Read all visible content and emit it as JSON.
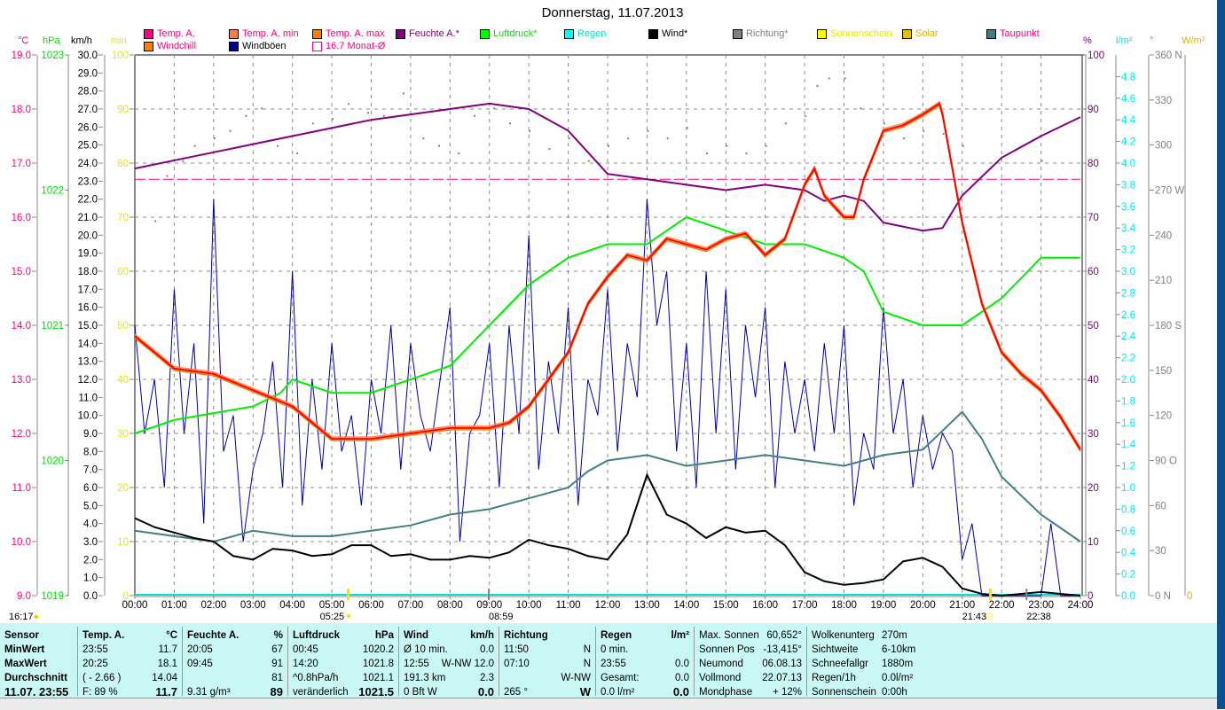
{
  "title": "Donnerstag, 11.07.2013",
  "legend": [
    {
      "label": "Temp. A.",
      "color": "#ff0080",
      "text": "#ff0080"
    },
    {
      "label": "Temp. A. min",
      "color": "#ff8040",
      "text": "#ff0080"
    },
    {
      "label": "Temp. A. max",
      "color": "#ff8000",
      "text": "#ff0080"
    },
    {
      "label": "Feuchte A.*",
      "color": "#800080",
      "text": "#800080"
    },
    {
      "label": "Luftdruck*",
      "color": "#00ff00",
      "text": "#00e000"
    },
    {
      "label": "Regen",
      "color": "#00ffff",
      "text": "#00e0e0"
    },
    {
      "label": "Wind*",
      "color": "#000000",
      "text": "#000000"
    },
    {
      "label": "Richtung*",
      "color": "#808080",
      "text": "#808080"
    },
    {
      "label": "Sonnenschein",
      "color": "#ffff00",
      "text": "#e8e800"
    },
    {
      "label": "Solar",
      "color": "#e0c000",
      "text": "#e0b000"
    },
    {
      "label": "Taupunkt",
      "color": "#408080",
      "text": "#ff0080"
    },
    {
      "label": "Windchill",
      "color": "#ff8000",
      "text": "#ff0080"
    },
    {
      "label": "Windböen",
      "color": "#000090",
      "text": "#000000"
    },
    {
      "label": "16.7 Monat-Ø",
      "color": "#ff0080",
      "text": "#ff0080"
    }
  ],
  "units": {
    "temp": "°C",
    "pressure": "hPa",
    "wind": "km/h",
    "minutes": "min",
    "humidity": "%",
    "rain": "l/m²",
    "direction": "°",
    "solar": "W/m²"
  },
  "chart_data": {
    "type": "line",
    "title": "Donnerstag, 11.07.2013",
    "x_tick_labels": [
      "00:00",
      "01:00",
      "02:00",
      "03:00",
      "04:00",
      "05:00",
      "06:00",
      "07:00",
      "08:00",
      "09:00",
      "10:00",
      "11:00",
      "12:00",
      "13:00",
      "14:00",
      "15:00",
      "16:00",
      "17:00",
      "18:00",
      "19:00",
      "20:00",
      "21:00",
      "22:00",
      "23:00",
      "24:00"
    ],
    "xlim_hours": [
      0,
      24
    ],
    "axes": {
      "temp": {
        "range": [
          9,
          19
        ],
        "ticks": [
          "9.0",
          "10.0",
          "11.0",
          "12.0",
          "13.0",
          "14.0",
          "15.0",
          "16.0",
          "17.0",
          "18.0",
          "19.0"
        ]
      },
      "pressure": {
        "range": [
          1019,
          1023
        ],
        "ticks": [
          "1019",
          "1020",
          "1021",
          "1022",
          "1023"
        ]
      },
      "wind": {
        "range": [
          0,
          30
        ],
        "ticks": [
          "0.0",
          "1.0",
          "2.0",
          "3.0",
          "4.0",
          "5.0",
          "6.0",
          "7.0",
          "8.0",
          "9.0",
          "10.0",
          "11.0",
          "12.0",
          "13.0",
          "14.0",
          "15.0",
          "16.0",
          "17.0",
          "18.0",
          "19.0",
          "20.0",
          "21.0",
          "22.0",
          "23.0",
          "24.0",
          "25.0",
          "26.0",
          "27.0",
          "28.0",
          "29.0",
          "30.0"
        ]
      },
      "minutes": {
        "range": [
          0,
          100
        ],
        "ticks": [
          "0",
          "10",
          "20",
          "30",
          "40",
          "50",
          "60",
          "70",
          "80",
          "90",
          "100"
        ]
      },
      "humidity": {
        "range": [
          0,
          100
        ],
        "ticks": [
          "0",
          "10",
          "20",
          "30",
          "40",
          "50",
          "60",
          "70",
          "80",
          "90",
          "100"
        ]
      },
      "rain": {
        "range": [
          0,
          5
        ],
        "ticks": [
          "0.0",
          "0.2",
          "0.4",
          "0.6",
          "0.8",
          "1.0",
          "1.2",
          "1.4",
          "1.6",
          "1.8",
          "2.0",
          "2.2",
          "2.4",
          "2.6",
          "2.8",
          "3.0",
          "3.2",
          "3.4",
          "3.6",
          "3.8",
          "4.0",
          "4.2",
          "4.4",
          "4.6",
          "4.8"
        ]
      },
      "direction": {
        "range": [
          0,
          360
        ],
        "ticks": [
          "0  N",
          "30",
          "60",
          "90  O",
          "120",
          "150",
          "180  S",
          "210",
          "240",
          "270  W",
          "300",
          "330",
          "360  N"
        ]
      },
      "solar": {
        "range": [
          0,
          1
        ],
        "ticks": [
          "0"
        ]
      }
    },
    "month_avg_temp": 16.7,
    "series": [
      {
        "name": "Temp. A.",
        "axis": "temp",
        "color": "#ff0000",
        "x": [
          0,
          1,
          2,
          3,
          4,
          4.5,
          5,
          6,
          7,
          8,
          9,
          9.5,
          10,
          10.5,
          11,
          11.5,
          12,
          12.5,
          13,
          13.5,
          14,
          14.5,
          15,
          15.5,
          16,
          16.5,
          17,
          17.25,
          17.5,
          18,
          18.25,
          18.5,
          19,
          19.5,
          20,
          20.42,
          20.5,
          21,
          21.5,
          22,
          22.5,
          23,
          23.5,
          24
        ],
        "values": [
          13.8,
          13.2,
          13.1,
          12.8,
          12.5,
          12.2,
          11.9,
          11.9,
          12.0,
          12.1,
          12.1,
          12.2,
          12.5,
          13.0,
          13.5,
          14.4,
          14.9,
          15.3,
          15.2,
          15.6,
          15.5,
          15.4,
          15.6,
          15.7,
          15.3,
          15.6,
          16.6,
          16.9,
          16.4,
          16.0,
          16.0,
          16.7,
          17.6,
          17.7,
          17.9,
          18.1,
          17.9,
          15.9,
          14.4,
          13.5,
          13.1,
          12.8,
          12.3,
          11.7
        ]
      },
      {
        "name": "Feuchte A.*",
        "axis": "humidity",
        "color": "#800080",
        "x": [
          0,
          1,
          2,
          3,
          4,
          5,
          6,
          7,
          8,
          9,
          10,
          11,
          12,
          13,
          14,
          15,
          16,
          17,
          17.5,
          18,
          18.5,
          19,
          20,
          20.5,
          21,
          22,
          23,
          24
        ],
        "values": [
          79,
          80.5,
          82,
          83.5,
          85,
          86.5,
          88,
          89,
          90,
          91,
          90,
          86,
          78,
          77,
          76,
          75,
          76,
          75,
          73,
          74,
          73,
          69,
          67.5,
          68,
          74,
          81,
          85,
          88.5
        ]
      },
      {
        "name": "Luftdruck*",
        "axis": "pressure",
        "color": "#00ee00",
        "x": [
          0,
          1,
          2,
          3,
          3.7,
          4,
          5,
          6,
          7,
          8,
          9,
          10,
          11,
          12,
          13,
          14,
          15,
          16,
          17,
          18,
          18.5,
          19,
          20,
          21,
          21.5,
          22,
          23,
          24
        ],
        "values": [
          1020.2,
          1020.3,
          1020.35,
          1020.4,
          1020.5,
          1020.6,
          1020.5,
          1020.5,
          1020.6,
          1020.7,
          1021.0,
          1021.3,
          1021.5,
          1021.6,
          1021.6,
          1021.8,
          1021.7,
          1021.6,
          1021.6,
          1021.5,
          1021.4,
          1021.1,
          1021.0,
          1021.0,
          1021.1,
          1021.2,
          1021.5,
          1021.5
        ]
      },
      {
        "name": "Wind*",
        "axis": "wind",
        "color": "#000000",
        "x": [
          0,
          0.5,
          1,
          1.5,
          2,
          2.5,
          3,
          3.5,
          4,
          4.5,
          5,
          5.5,
          6,
          6.5,
          7,
          7.5,
          8,
          8.5,
          9,
          9.5,
          10,
          10.5,
          11,
          11.5,
          12,
          12.5,
          13,
          13.5,
          14,
          14.5,
          15,
          15.5,
          16,
          16.5,
          17,
          17.5,
          18,
          18.5,
          19,
          19.5,
          20,
          20.5,
          21,
          21.5,
          22,
          23,
          23.5,
          24
        ],
        "values": [
          4.3,
          3.8,
          3.5,
          3.2,
          3.0,
          2.2,
          2.0,
          2.6,
          2.5,
          2.2,
          2.3,
          2.8,
          2.8,
          2.2,
          2.3,
          2.0,
          2.0,
          2.2,
          2.1,
          2.4,
          3.1,
          2.8,
          2.6,
          2.2,
          2.0,
          3.4,
          6.7,
          4.5,
          4.0,
          3.2,
          3.8,
          3.5,
          3.6,
          2.8,
          1.3,
          0.8,
          0.6,
          0.7,
          0.9,
          1.9,
          2.1,
          1.6,
          0.4,
          0.1,
          0.0,
          0.2,
          0.1,
          0.0
        ]
      },
      {
        "name": "Windböen",
        "axis": "wind",
        "color": "#0000a0",
        "x": [
          0,
          0.25,
          0.5,
          0.75,
          1,
          1.25,
          1.5,
          1.75,
          2,
          2.25,
          2.5,
          2.75,
          3,
          3.25,
          3.5,
          3.75,
          4,
          4.25,
          4.5,
          4.75,
          5,
          5.25,
          5.5,
          5.75,
          6,
          6.25,
          6.5,
          6.75,
          7,
          7.25,
          7.5,
          7.75,
          8,
          8.25,
          8.5,
          8.75,
          9,
          9.25,
          9.5,
          9.75,
          10,
          10.25,
          10.5,
          10.75,
          11,
          11.25,
          11.5,
          11.75,
          12,
          12.25,
          12.5,
          12.75,
          13,
          13.25,
          13.5,
          13.75,
          14,
          14.25,
          14.5,
          14.75,
          15,
          15.25,
          15.5,
          15.75,
          16,
          16.25,
          16.5,
          16.75,
          17,
          17.25,
          17.5,
          17.75,
          18,
          18.25,
          18.5,
          18.75,
          19,
          19.25,
          19.5,
          19.75,
          20,
          20.25,
          20.5,
          20.75,
          21,
          21.25,
          21.5,
          21.75,
          22,
          22.25,
          22.5,
          22.75,
          23,
          23.25,
          23.5,
          23.75,
          24
        ],
        "values": [
          15,
          9,
          12,
          6,
          17,
          9,
          14,
          4,
          22,
          8,
          10,
          3,
          7,
          9,
          13,
          6,
          18,
          5,
          12,
          7,
          14,
          8,
          10,
          5,
          12,
          9,
          15,
          7,
          14,
          10,
          8,
          12,
          16,
          3,
          9,
          10,
          14,
          6,
          15,
          9,
          20,
          7,
          13,
          9,
          16,
          5,
          12,
          10,
          17,
          8,
          14,
          11,
          22,
          15,
          18,
          8,
          14,
          6,
          18,
          9,
          17,
          7,
          15,
          11,
          16,
          6,
          13,
          9,
          12,
          8,
          14,
          9,
          15,
          5,
          9,
          7,
          16,
          9,
          12,
          6,
          10,
          7,
          9,
          8,
          2,
          4,
          0,
          0,
          0,
          0,
          0,
          0,
          0,
          4,
          0,
          0,
          0
        ]
      },
      {
        "name": "Taupunkt",
        "axis": "temp",
        "color": "#408080",
        "x": [
          0,
          1,
          2,
          3,
          4,
          5,
          6,
          7,
          8,
          9,
          10,
          11,
          11.5,
          12,
          13,
          14,
          15,
          16,
          17,
          18,
          19,
          20,
          21,
          21.5,
          22,
          23,
          24
        ],
        "values": [
          10.2,
          10.1,
          10.0,
          10.2,
          10.1,
          10.1,
          10.2,
          10.3,
          10.5,
          10.6,
          10.8,
          11.0,
          11.3,
          11.5,
          11.6,
          11.4,
          11.5,
          11.6,
          11.5,
          11.4,
          11.6,
          11.7,
          12.4,
          11.9,
          11.2,
          10.5,
          10.0
        ]
      },
      {
        "name": "Richtung*",
        "axis": "direction",
        "color": "#808080",
        "type": "scatter",
        "x": [
          0.5,
          0.8,
          1.2,
          1.5,
          2.0,
          2.4,
          2.8,
          3.2,
          3.6,
          4.1,
          4.5,
          5.0,
          5.4,
          5.9,
          6.3,
          6.8,
          7.3,
          7.7,
          8.2,
          8.6,
          9.1,
          9.5,
          10.0,
          10.5,
          11.0,
          11.5,
          12.0,
          12.5,
          13.0,
          13.5,
          14.0,
          14.5,
          15.0,
          15.5,
          16.0,
          16.5,
          17.0,
          17.3,
          17.6,
          18.0,
          18.4,
          19.0,
          19.5,
          20.0,
          20.5,
          21.0,
          23.0
        ],
        "values": [
          250,
          280,
          290,
          300,
          305,
          310,
          320,
          325,
          300,
          295,
          315,
          318,
          328,
          322,
          320,
          335,
          305,
          300,
          295,
          320,
          325,
          315,
          310,
          298,
          305,
          290,
          300,
          305,
          310,
          305,
          312,
          295,
          300,
          295,
          300,
          315,
          320,
          340,
          345,
          345,
          325,
          315,
          305,
          310,
          308,
          300,
          290
        ]
      }
    ],
    "sun_times": {
      "sunrise": "05:25",
      "sunset": "21:43"
    },
    "moon_times": {
      "moonrise": "08:59",
      "moonset": "22:38"
    },
    "left_time": "16:17"
  },
  "table": {
    "sensor": {
      "header": "Sensor",
      "rows": [
        "MinWert",
        "MaxWert",
        "Durchschnitt",
        "11.07. 23:55"
      ]
    },
    "temp": {
      "header": "Temp. A.",
      "unit": "°C",
      "rows": [
        [
          "23:55",
          "11.7"
        ],
        [
          "20:25",
          "18.1"
        ],
        [
          "( - 2.66 )",
          "14.04"
        ],
        [
          "F: 89 %",
          "11.7"
        ]
      ]
    },
    "humidity": {
      "header": "Feuchte A.",
      "unit": "%",
      "rows": [
        [
          "20:05",
          "67"
        ],
        [
          "09:45",
          "91"
        ],
        [
          "",
          "81"
        ],
        [
          "9.31 g/m³",
          "89"
        ]
      ]
    },
    "pressure": {
      "header": "Luftdruck",
      "unit": "hPa",
      "rows": [
        [
          "00:45",
          "1020.2"
        ],
        [
          "14:20",
          "1021.8"
        ],
        [
          "^0.8hPa/h",
          "1021.1"
        ],
        [
          "veränderlich",
          "1021.5"
        ]
      ]
    },
    "wind": {
      "header": "Wind",
      "unit": "km/h",
      "rows": [
        [
          "Ø 10 min.",
          "0.0"
        ],
        [
          "12:55",
          "W-NW 12.0"
        ],
        [
          "191.3 km",
          "2.3"
        ],
        [
          "0 Bft W",
          "0.0"
        ]
      ]
    },
    "direction": {
      "header": "Richtung",
      "unit": "",
      "rows": [
        [
          "11:50",
          "N"
        ],
        [
          "07:10",
          "N"
        ],
        [
          "",
          "W-NW"
        ],
        [
          "265 °",
          "W"
        ]
      ]
    },
    "rain": {
      "header": "Regen",
      "unit": "l/m²",
      "rows": [
        [
          "0 min.",
          ""
        ],
        [
          "23:55",
          "0.0"
        ],
        [
          "Gesamt:",
          "0.0"
        ],
        [
          "0.0 l/m²",
          "0.0"
        ]
      ]
    },
    "sun": {
      "rows": [
        [
          "Max. Sonnen",
          "60,652°"
        ],
        [
          "Sonnen Pos",
          "-13,415°"
        ],
        [
          "Neumond",
          "06.08.13"
        ],
        [
          "Vollmond",
          "22.07.13"
        ],
        [
          "Mondphase",
          "+ 12%"
        ]
      ]
    },
    "misc": {
      "rows": [
        [
          "Wolkenunterg",
          "270m"
        ],
        [
          "Sichtweite",
          "6-10km"
        ],
        [
          "Schneefallgr",
          "1880m"
        ],
        [
          "Regen/1h",
          "0.0l/m²"
        ],
        [
          "Sonnenschein",
          "0:00h"
        ]
      ]
    }
  }
}
